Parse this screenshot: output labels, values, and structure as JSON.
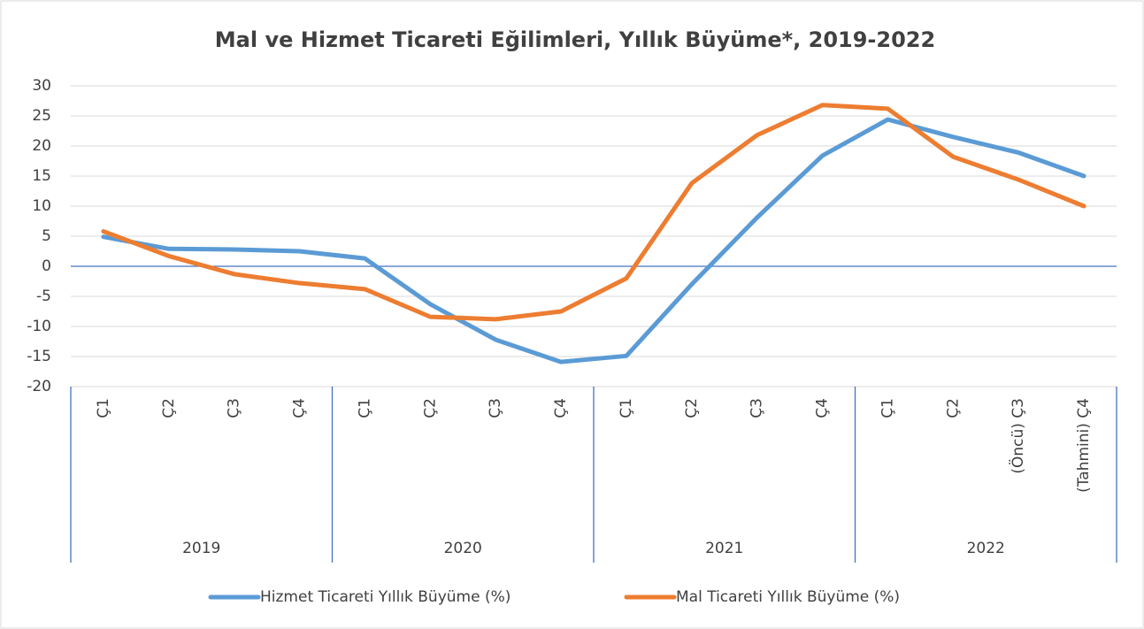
{
  "chart_data": {
    "type": "line",
    "title": "Mal ve Hizmet Ticareti Eğilimleri, Yıllık Büyüme*, 2019-2022",
    "categories": [
      "Ç1",
      "Ç2",
      "Ç3",
      "Ç4",
      "Ç1",
      "Ç2",
      "Ç3",
      "Ç4",
      "Ç1",
      "Ç2",
      "Ç3",
      "Ç4",
      "Ç1",
      "Ç2",
      "(Öncü) Ç3",
      "(Tahmini) Ç4"
    ],
    "groups": [
      "2019",
      "2020",
      "2021",
      "2022"
    ],
    "series": [
      {
        "name": "Hizmet Ticareti Yıllık Büyüme (%)",
        "color": "#5b9bd5",
        "values": [
          4.9,
          2.9,
          2.8,
          2.5,
          1.3,
          -6.3,
          -12.2,
          -15.9,
          -14.9,
          -3.0,
          8.1,
          18.4,
          24.4,
          21.5,
          18.9,
          15.0
        ]
      },
      {
        "name": "Mal Ticareti Yıllık Büyüme (%)",
        "color": "#ed7d31",
        "values": [
          5.8,
          1.7,
          -1.3,
          -2.8,
          -3.8,
          -8.4,
          -8.8,
          -7.5,
          -2.0,
          13.8,
          21.8,
          26.8,
          26.2,
          18.2,
          14.4,
          10.0
        ]
      }
    ],
    "ylim": [
      -20,
      30
    ],
    "yticks": [
      -20,
      -15,
      -10,
      -5,
      0,
      5,
      10,
      15,
      20,
      25,
      30
    ],
    "grid": true
  }
}
